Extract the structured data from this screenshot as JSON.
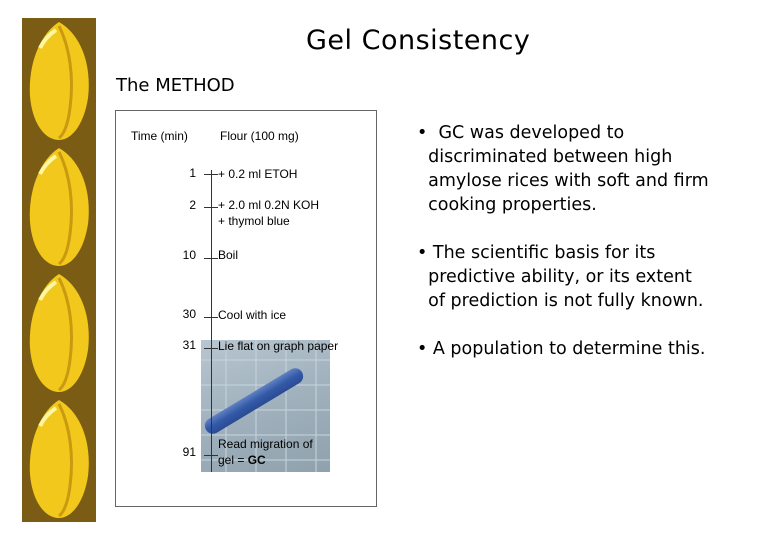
{
  "title": "Gel Consistency",
  "subtitle": "The METHOD",
  "table": {
    "time_header": "Time (min)",
    "step_header": "Flour (100 mg)",
    "rows": [
      {
        "time": "1",
        "step_lines": [
          "+ 0.2 ml ETOH"
        ]
      },
      {
        "time": "2",
        "step_lines": [
          "+ 2.0 ml 0.2N KOH",
          "+ thymol blue"
        ]
      },
      {
        "time": "10",
        "step_lines": [
          "Boil"
        ]
      },
      {
        "time": "30",
        "step_lines": [
          "Cool with ice"
        ]
      },
      {
        "time": "31",
        "step_lines": [
          "Lie flat on graph paper"
        ]
      },
      {
        "time": "91",
        "step_lines": [
          "Read migration of",
          "gel = "
        ],
        "step_bold": "GC"
      }
    ]
  },
  "bullets": [
    {
      "lines": [
        "•  GC was developed to",
        "  discriminated between high",
        "  amylose rices with soft and firm",
        "  cooking properties."
      ]
    },
    {
      "lines": [
        "• The scientific basis for its",
        "  predictive ability, or its extent",
        "  of prediction is not fully known."
      ]
    },
    {
      "lines": [
        "• A population to determine this."
      ]
    }
  ]
}
